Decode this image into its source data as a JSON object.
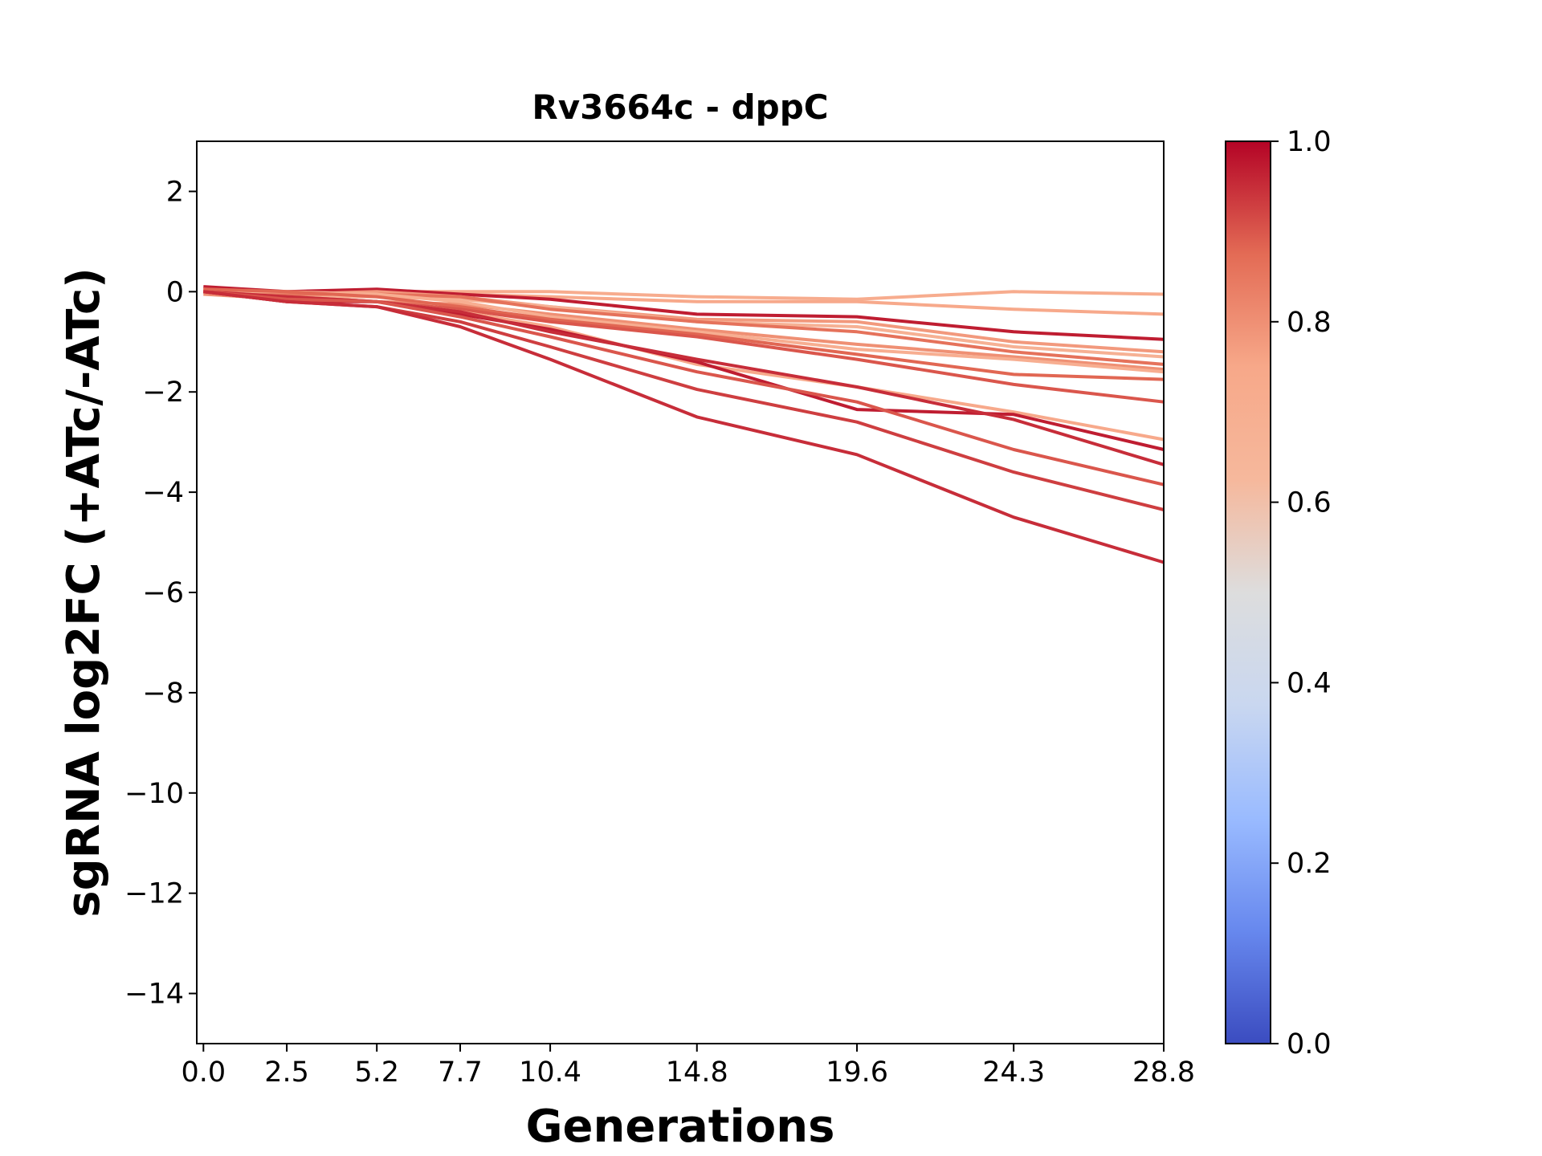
{
  "chart_data": {
    "type": "line",
    "title": "Rv3664c - dppC",
    "xlabel": "Generations",
    "ylabel": "sgRNA log2FC (+ATc/-ATc)",
    "x": [
      0.0,
      2.5,
      5.2,
      7.7,
      10.4,
      14.8,
      19.6,
      24.3,
      28.8
    ],
    "x_tick_labels": [
      "0.0",
      "2.5",
      "5.2",
      "7.7",
      "10.4",
      "14.8",
      "19.6",
      "24.3",
      "28.8"
    ],
    "xlim": [
      -0.2,
      28.8
    ],
    "ylim": [
      -15,
      3
    ],
    "y_ticks": [
      2,
      0,
      -2,
      -4,
      -6,
      -8,
      -10,
      -12,
      -14
    ],
    "y_tick_labels": [
      "2",
      "0",
      "−2",
      "−4",
      "−6",
      "−8",
      "−10",
      "−12",
      "−14"
    ],
    "series": [
      {
        "values": [
          0.05,
          -0.05,
          0.0,
          0.0,
          0.0,
          -0.1,
          -0.15,
          0.0,
          -0.05
        ],
        "c": 0.72
      },
      {
        "values": [
          0.0,
          -0.1,
          -0.05,
          -0.05,
          -0.1,
          -0.2,
          -0.2,
          -0.35,
          -0.45
        ],
        "c": 0.74
      },
      {
        "values": [
          0.1,
          0.0,
          0.05,
          -0.05,
          -0.15,
          -0.45,
          -0.5,
          -0.8,
          -0.95
        ],
        "c": 0.97
      },
      {
        "values": [
          0.05,
          -0.05,
          0.0,
          -0.1,
          -0.3,
          -0.55,
          -0.6,
          -1.0,
          -1.2
        ],
        "c": 0.78
      },
      {
        "values": [
          0.0,
          -0.1,
          -0.1,
          -0.15,
          -0.3,
          -0.6,
          -0.7,
          -1.1,
          -1.3
        ],
        "c": 0.68
      },
      {
        "values": [
          0.0,
          -0.05,
          -0.05,
          -0.1,
          -0.35,
          -0.6,
          -0.8,
          -1.2,
          -1.45
        ],
        "c": 0.86
      },
      {
        "values": [
          -0.05,
          -0.15,
          -0.2,
          -0.25,
          -0.45,
          -0.75,
          -1.05,
          -1.3,
          -1.55
        ],
        "c": 0.8
      },
      {
        "values": [
          0.0,
          0.0,
          -0.05,
          -0.2,
          -0.5,
          -0.8,
          -1.15,
          -1.35,
          -1.6
        ],
        "c": 0.7
      },
      {
        "values": [
          0.05,
          0.0,
          -0.1,
          -0.3,
          -0.55,
          -0.85,
          -1.25,
          -1.65,
          -1.75
        ],
        "c": 0.88
      },
      {
        "values": [
          0.0,
          -0.1,
          -0.2,
          -0.35,
          -0.6,
          -0.9,
          -1.35,
          -1.85,
          -2.2
        ],
        "c": 0.9
      },
      {
        "values": [
          0.0,
          -0.1,
          -0.2,
          -0.4,
          -0.7,
          -1.45,
          -1.9,
          -2.4,
          -2.95
        ],
        "c": 0.74
      },
      {
        "values": [
          0.0,
          -0.2,
          -0.2,
          -0.45,
          -0.75,
          -1.4,
          -2.35,
          -2.45,
          -3.15
        ],
        "c": 0.97
      },
      {
        "values": [
          0.0,
          -0.1,
          -0.2,
          -0.4,
          -0.8,
          -1.35,
          -1.9,
          -2.55,
          -3.45
        ],
        "c": 0.95
      },
      {
        "values": [
          0.0,
          -0.15,
          -0.2,
          -0.5,
          -0.9,
          -1.6,
          -2.2,
          -3.15,
          -3.85
        ],
        "c": 0.9
      },
      {
        "values": [
          0.0,
          -0.2,
          -0.3,
          -0.6,
          -1.1,
          -1.95,
          -2.6,
          -3.6,
          -4.35
        ],
        "c": 0.93
      },
      {
        "values": [
          0.0,
          -0.2,
          -0.3,
          -0.7,
          -1.35,
          -2.5,
          -3.25,
          -4.5,
          -5.4
        ],
        "c": 0.95
      }
    ],
    "colorbar": {
      "colormap": "coolwarm",
      "range": [
        0.0,
        1.0
      ],
      "ticks": [
        0.0,
        0.2,
        0.4,
        0.6,
        0.8,
        1.0
      ],
      "tick_labels": [
        "0.0",
        "0.2",
        "0.4",
        "0.6",
        "0.8",
        "1.0"
      ],
      "stops": [
        "#3b4cc0",
        "#6788ee",
        "#9abbff",
        "#c9d7f0",
        "#dddddd",
        "#f6b89c",
        "#f7a889",
        "#e36b55",
        "#b40426"
      ]
    },
    "grid": false,
    "legend": "none"
  }
}
